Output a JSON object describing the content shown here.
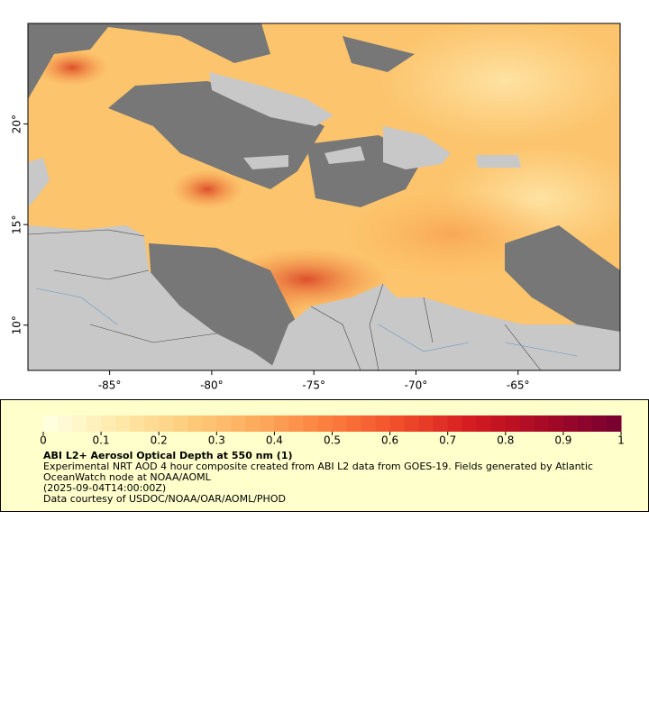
{
  "map": {
    "xlim": [
      -89,
      -60
    ],
    "ylim": [
      7.75,
      25
    ],
    "xticks": [
      {
        "value": -85,
        "label": "-85°"
      },
      {
        "value": -80,
        "label": "-80°"
      },
      {
        "value": -75,
        "label": "-75°"
      },
      {
        "value": -70,
        "label": "-70°"
      },
      {
        "value": -65,
        "label": "-65°"
      }
    ],
    "yticks": [
      {
        "value": 10,
        "label": "10°"
      },
      {
        "value": 15,
        "label": "15°"
      },
      {
        "value": 20,
        "label": "20°"
      }
    ]
  },
  "legend": {
    "colorbar": {
      "range": [
        0,
        1
      ],
      "ticks": [
        0,
        0.1,
        0.2,
        0.3,
        0.4,
        0.5,
        0.6,
        0.7,
        0.8,
        0.9,
        1
      ],
      "colors": [
        "#ffffe0",
        "#fee8a8",
        "#fdcb7a",
        "#fda85a",
        "#fb7b3c",
        "#f04a2a",
        "#d41a20",
        "#a80a26",
        "#7a0030"
      ]
    },
    "title": "ABI L2+ Aerosol Optical Depth at 550 nm (1)",
    "description": "Experimental NRT AOD 4 hour composite created from ABI L2 data from GOES-19. Fields generated by Atlantic OceanWatch node at NOAA/AOML",
    "timestamp": "(2025-09-04T14:00:00Z)",
    "credit": "Data courtesy of USDOC/NOAA/OAR/AOML/PHOD"
  }
}
